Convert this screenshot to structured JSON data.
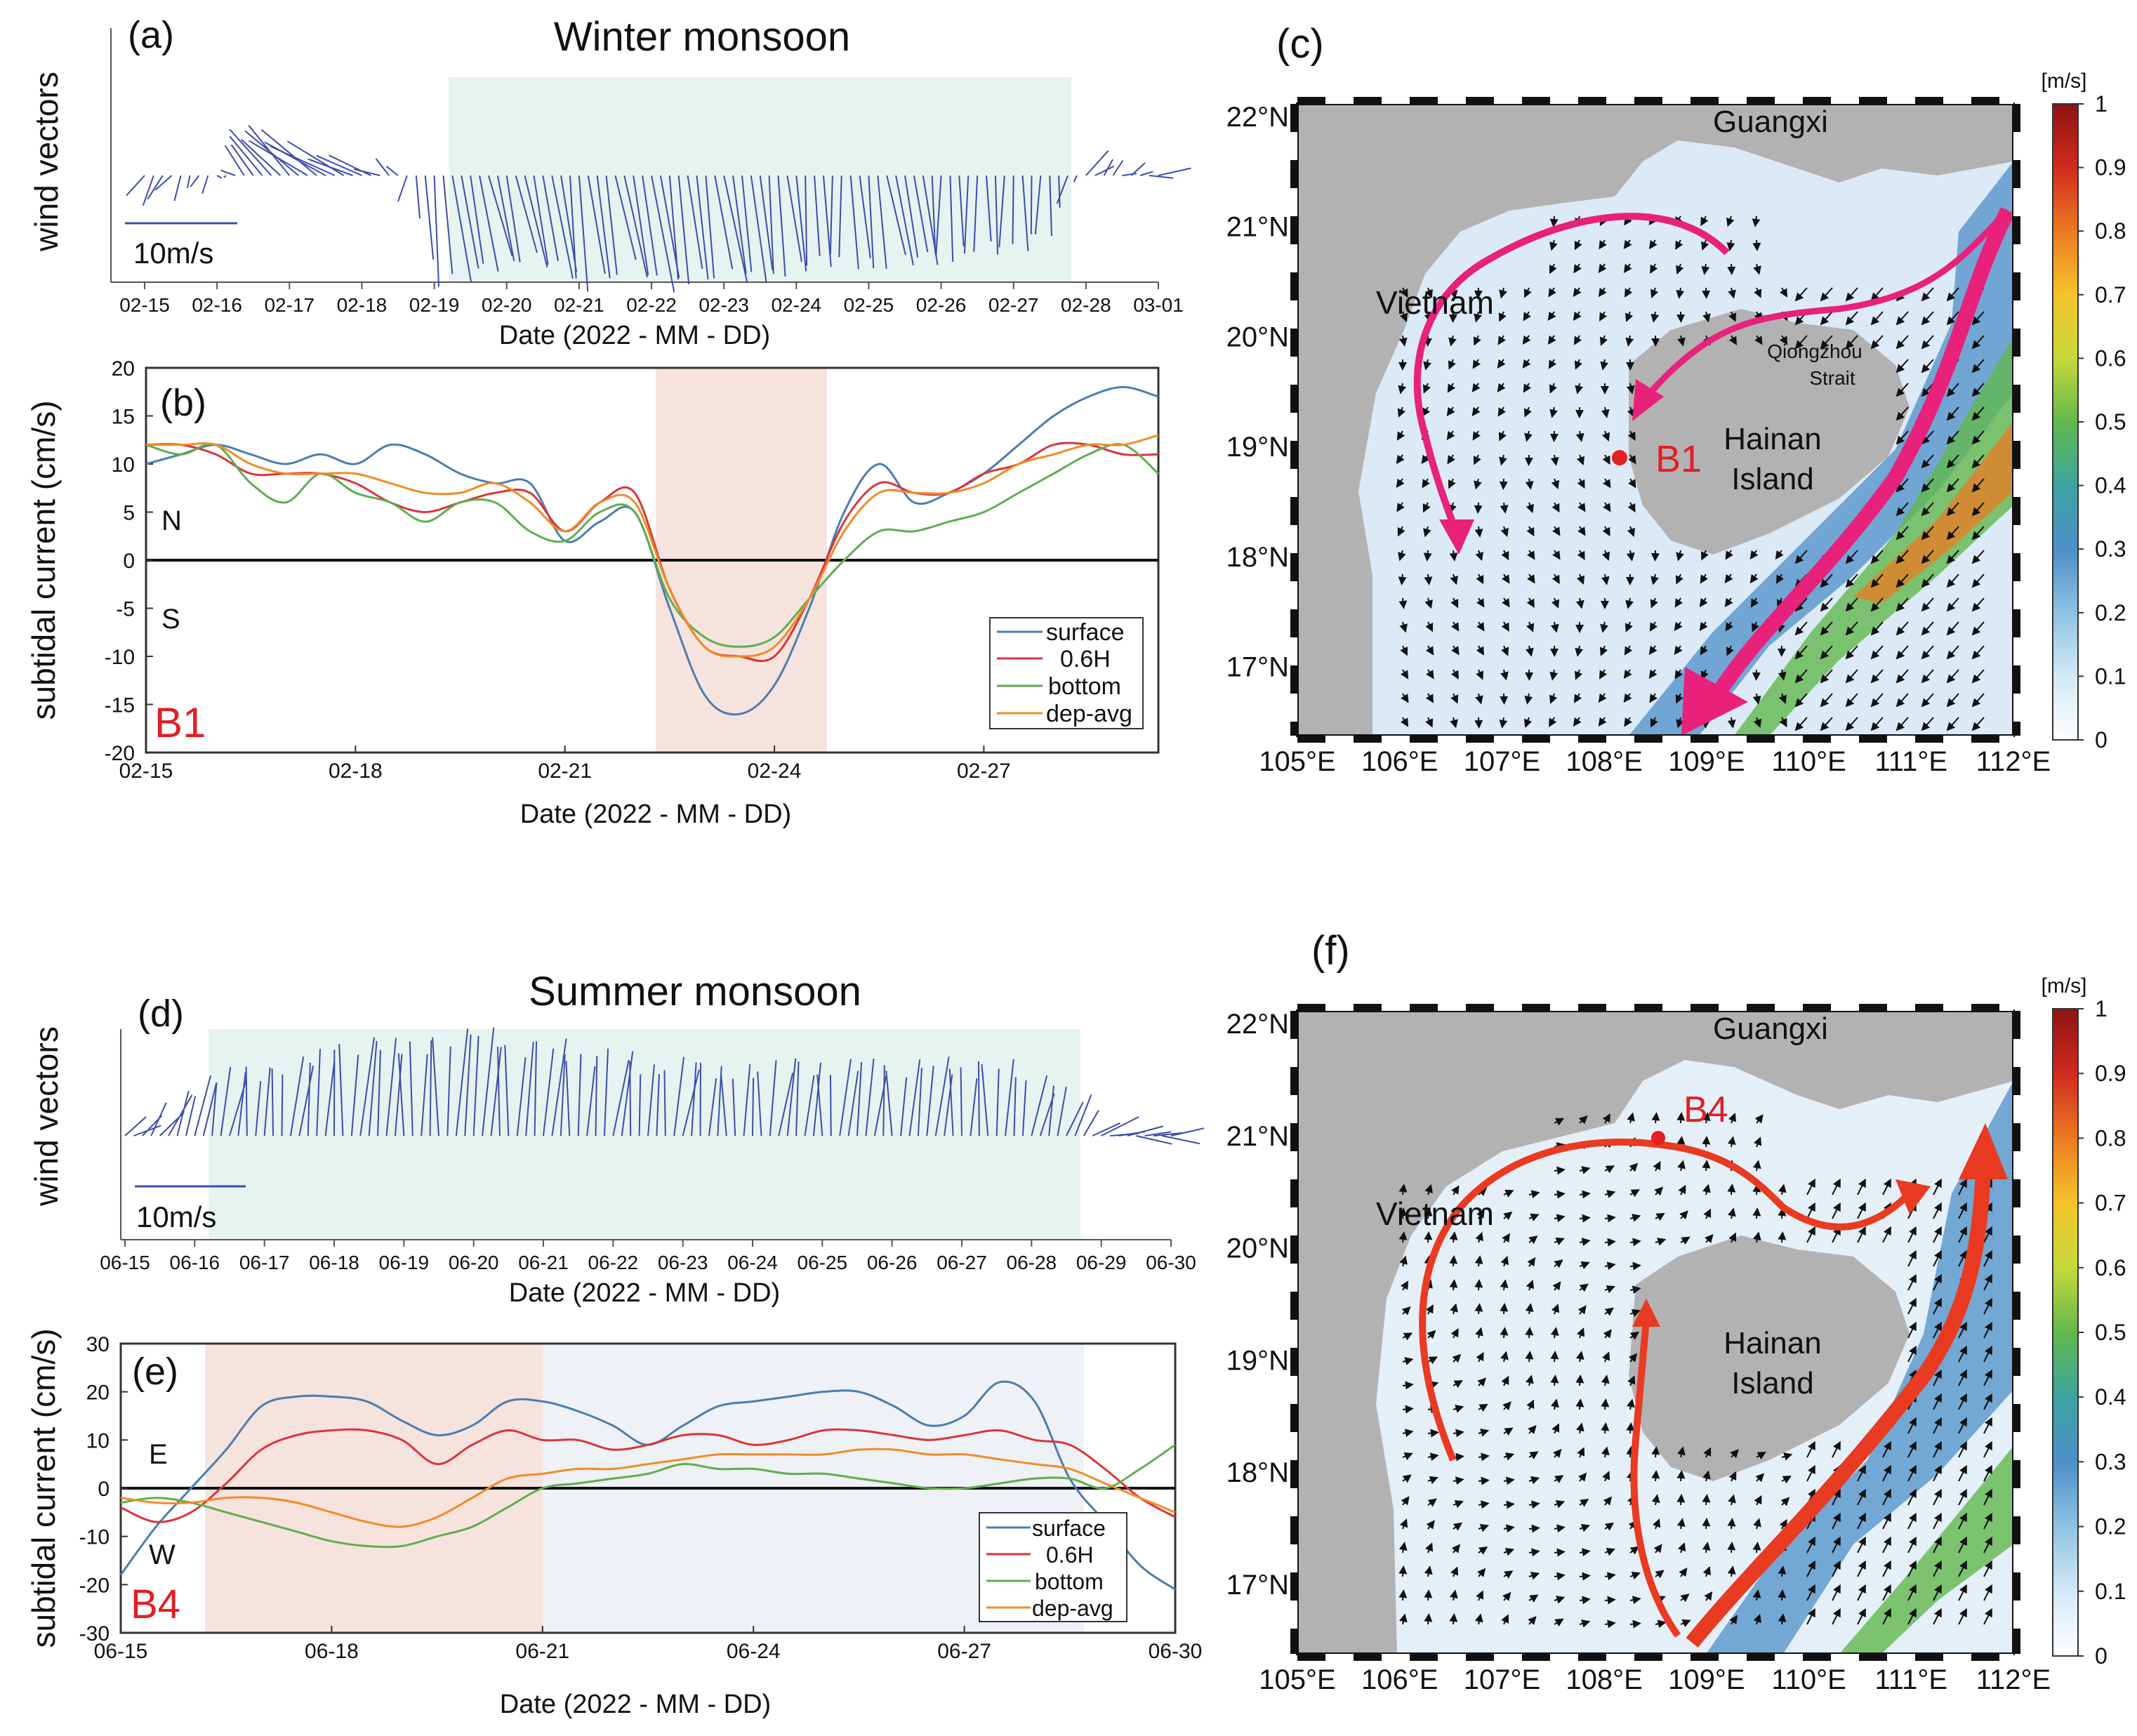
{
  "colors": {
    "wind": "#3b4ea8",
    "wind_shade": "#e7f3f1",
    "current_shade_south": "#f6e3de",
    "current_shade_north": "#eef1f5",
    "surface": "#4a7db0",
    "h06": "#d9353c",
    "bottom": "#5fae4f",
    "depavg": "#f08c28",
    "land": "#b2b2b2",
    "winter_arrow": "#e8217a",
    "summer_arrow": "#e93a22",
    "label_red": "#e31e24"
  },
  "panels": {
    "a": {
      "letter": "(a)",
      "title": "Winter monsoon",
      "ylabel": "wind vectors",
      "xlabel": "Date (2022 - MM - DD)",
      "scale_label": "10m/s",
      "ticks": [
        "02-15",
        "02-16",
        "02-17",
        "02-18",
        "02-19",
        "02-20",
        "02-21",
        "02-22",
        "02-23",
        "02-24",
        "02-25",
        "02-26",
        "02-27",
        "02-28",
        "03-01"
      ]
    },
    "b": {
      "letter": "(b)",
      "ylabel": "subtidal current (cm/s)",
      "xlabel": "Date (2022 - MM - DD)",
      "station": "B1",
      "pos_label": "N",
      "neg_label": "S",
      "yticks": [
        "20",
        "15",
        "10",
        "5",
        "0",
        "-5",
        "-10",
        "-15",
        "-20"
      ],
      "xticks": [
        "02-15",
        "02-18",
        "02-21",
        "02-24",
        "02-27"
      ],
      "legend": [
        "surface",
        "0.6H",
        "bottom",
        "dep-avg"
      ]
    },
    "c": {
      "letter": "(c)",
      "labels": {
        "guangxi": "Guangxi",
        "vietnam": "Vietnam",
        "strait": "Qiongzhou",
        "strait2": "Strait",
        "island": "Hainan",
        "island2": "Island",
        "station": "B1"
      },
      "lat_ticks": [
        "22°N",
        "21°N",
        "20°N",
        "19°N",
        "18°N",
        "17°N"
      ],
      "lon_ticks": [
        "105°E",
        "106°E",
        "107°E",
        "108°E",
        "109°E",
        "110°E",
        "111°E",
        "112°E"
      ],
      "cbar_unit": "[m/s]",
      "cbar_ticks": [
        "1",
        "0.9",
        "0.8",
        "0.7",
        "0.6",
        "0.5",
        "0.4",
        "0.3",
        "0.2",
        "0.1",
        "0"
      ]
    },
    "d": {
      "letter": "(d)",
      "title": "Summer monsoon",
      "ylabel": "wind vectors",
      "xlabel": "Date (2022 - MM - DD)",
      "scale_label": "10m/s",
      "ticks": [
        "06-15",
        "06-16",
        "06-17",
        "06-18",
        "06-19",
        "06-20",
        "06-21",
        "06-22",
        "06-23",
        "06-24",
        "06-25",
        "06-26",
        "06-27",
        "06-28",
        "06-29",
        "06-30"
      ]
    },
    "e": {
      "letter": "(e)",
      "ylabel": "subtidal current (cm/s)",
      "xlabel": "Date (2022 - MM - DD)",
      "station": "B4",
      "pos_label": "E",
      "neg_label": "W",
      "yticks": [
        "30",
        "20",
        "10",
        "0",
        "-10",
        "-20",
        "-30"
      ],
      "xticks": [
        "06-15",
        "06-18",
        "06-21",
        "06-24",
        "06-27",
        "06-30"
      ],
      "legend": [
        "surface",
        "0.6H",
        "bottom",
        "dep-avg"
      ]
    },
    "f": {
      "letter": "(f)",
      "labels": {
        "guangxi": "Guangxi",
        "vietnam": "Vietnam",
        "island": "Hainan",
        "island2": "Island",
        "station": "B4"
      },
      "lat_ticks": [
        "22°N",
        "21°N",
        "20°N",
        "19°N",
        "18°N",
        "17°N"
      ],
      "lon_ticks": [
        "105°E",
        "106°E",
        "107°E",
        "108°E",
        "109°E",
        "110°E",
        "111°E",
        "112°E"
      ],
      "cbar_unit": "[m/s]",
      "cbar_ticks": [
        "1",
        "0.9",
        "0.8",
        "0.7",
        "0.6",
        "0.5",
        "0.4",
        "0.3",
        "0.2",
        "0.1",
        "0"
      ]
    }
  },
  "chart_data": [
    {
      "panel": "a",
      "type": "line",
      "title": "Winter monsoon",
      "xlabel": "Date (2022 - MM - DD)",
      "ylabel": "wind vectors",
      "description_series": "wind stick vectors, 3-hourly",
      "x": [
        0,
        0.5,
        1,
        1.25,
        1.5,
        2,
        2.5,
        3,
        3.5,
        4,
        4.5,
        5,
        5.5,
        6,
        6.5,
        7,
        7.5,
        8,
        8.5,
        9,
        9.5,
        10,
        10.5,
        11,
        11.5,
        12,
        12.5,
        12.8,
        13,
        13.5,
        14
      ],
      "u": [
        -2,
        -1,
        0,
        -1,
        -3,
        -5,
        -7,
        -5,
        -1,
        1,
        2,
        2,
        2,
        1,
        2,
        2,
        1,
        2,
        1,
        1,
        0,
        1,
        2,
        0,
        0,
        0,
        0,
        -1,
        2,
        1,
        3
      ],
      "v": [
        -3,
        -2,
        -1,
        1,
        4,
        5,
        4,
        2,
        1,
        -12,
        -10,
        -9,
        -10,
        -12,
        -10,
        -12,
        -11,
        -11,
        -11,
        -10,
        -9,
        -10,
        -9,
        -9,
        -8,
        -8,
        -6,
        -2,
        2,
        1,
        0
      ],
      "shade_x": [
        4.2,
        12.8
      ]
    },
    {
      "panel": "b",
      "type": "line",
      "xlabel": "Date (2022 - MM - DD)",
      "ylabel": "subtidal current (cm/s)",
      "ylim": [
        -20,
        20
      ],
      "xlim": [
        0,
        14.5
      ],
      "xtick_days": [
        0,
        3,
        6,
        9,
        12
      ],
      "shade_x": [
        7.3,
        9.75
      ],
      "x": [
        0,
        0.5,
        1,
        1.5,
        2,
        2.5,
        3,
        3.5,
        4,
        4.5,
        5,
        5.5,
        6,
        6.5,
        7,
        7.5,
        8,
        8.5,
        9,
        9.5,
        10,
        10.5,
        11,
        11.5,
        12,
        12.5,
        13,
        13.5,
        14,
        14.5
      ],
      "series": [
        {
          "name": "surface",
          "values": [
            10,
            11,
            12,
            11,
            10,
            11,
            10,
            12,
            11,
            9,
            8,
            8,
            2,
            4,
            5,
            -5,
            -14,
            -16,
            -13,
            -5,
            5,
            10,
            6,
            7,
            9,
            12,
            15,
            17,
            18,
            17
          ]
        },
        {
          "name": "0.6H",
          "values": [
            12,
            12,
            11,
            9,
            9,
            9,
            8,
            6,
            5,
            6,
            7,
            7,
            3,
            6,
            7,
            -3,
            -9,
            -10,
            -10,
            -4,
            4,
            8,
            7,
            7,
            9,
            10,
            12,
            12,
            11,
            11
          ]
        },
        {
          "name": "bottom",
          "values": [
            12,
            11,
            12,
            8,
            6,
            9,
            7,
            6,
            4,
            6,
            6,
            3,
            2,
            5,
            5,
            -4,
            -8,
            -9,
            -8,
            -4,
            0,
            3,
            3,
            4,
            5,
            7,
            9,
            11,
            12,
            9
          ]
        },
        {
          "name": "dep-avg",
          "values": [
            12,
            12,
            12,
            10,
            9,
            9,
            9,
            8,
            7,
            7,
            8,
            6,
            3,
            6,
            6,
            -3,
            -9,
            -10,
            -9,
            -4,
            3,
            7,
            7,
            7,
            8,
            10,
            11,
            12,
            12,
            13
          ]
        }
      ]
    },
    {
      "panel": "d",
      "type": "line",
      "title": "Summer monsoon",
      "xlabel": "Date (2022 - MM - DD)",
      "ylabel": "wind vectors",
      "description_series": "wind stick vectors, 3-hourly",
      "x": [
        0,
        0.5,
        1,
        1.5,
        2,
        2.5,
        3,
        3.5,
        4,
        4.5,
        5,
        5.5,
        6,
        6.5,
        7,
        7.5,
        8,
        8.5,
        9,
        9.5,
        10,
        10.5,
        11,
        11.5,
        12,
        12.5,
        13,
        13.5,
        14,
        14.5,
        15
      ],
      "u": [
        2,
        2,
        1,
        1,
        0,
        1,
        0,
        1,
        0,
        0,
        1,
        0,
        1,
        0,
        1,
        0,
        1,
        0,
        0,
        1,
        0,
        1,
        0,
        1,
        0,
        0,
        1,
        1,
        3,
        3,
        3
      ],
      "v": [
        1,
        3,
        5,
        6,
        6,
        7,
        8,
        9,
        8,
        9,
        10,
        8,
        9,
        7,
        8,
        6,
        7,
        6,
        6,
        7,
        6,
        7,
        6,
        7,
        6,
        7,
        5,
        4,
        1,
        0,
        0
      ],
      "shade_x": [
        1.2,
        13.7
      ]
    },
    {
      "panel": "e",
      "type": "line",
      "xlabel": "Date (2022 - MM - DD)",
      "ylabel": "subtidal current (cm/s)",
      "ylim": [
        -30,
        30
      ],
      "xlim": [
        0,
        15
      ],
      "xtick_days": [
        0,
        3,
        6,
        9,
        12,
        15
      ],
      "shade_south": [
        1.2,
        6
      ],
      "shade_north": [
        6,
        13.7
      ],
      "x": [
        0,
        0.5,
        1,
        1.5,
        2,
        2.5,
        3,
        3.5,
        4,
        4.5,
        5,
        5.5,
        6,
        6.5,
        7,
        7.5,
        8,
        8.5,
        9,
        9.5,
        10,
        10.5,
        11,
        11.5,
        12,
        12.5,
        13,
        13.5,
        14,
        14.5,
        15
      ],
      "series": [
        {
          "name": "surface",
          "values": [
            -18,
            -8,
            0,
            8,
            17,
            19,
            19,
            18,
            14,
            11,
            13,
            18,
            18,
            16,
            13,
            9,
            13,
            17,
            18,
            19,
            20,
            20,
            17,
            13,
            15,
            22,
            18,
            2,
            -7,
            -16,
            -21
          ]
        },
        {
          "name": "0.6H",
          "values": [
            -4,
            -7,
            -5,
            1,
            8,
            11,
            12,
            12,
            10,
            5,
            9,
            12,
            10,
            10,
            8,
            9,
            11,
            11,
            9,
            10,
            12,
            12,
            11,
            10,
            11,
            12,
            10,
            9,
            4,
            -2,
            -6
          ]
        },
        {
          "name": "bottom",
          "values": [
            -3,
            -2,
            -3,
            -5,
            -7,
            -9,
            -11,
            -12,
            -12,
            -10,
            -8,
            -4,
            0,
            1,
            2,
            3,
            5,
            4,
            4,
            3,
            3,
            2,
            1,
            0,
            0,
            1,
            2,
            2,
            0,
            4,
            9
          ]
        },
        {
          "name": "dep-avg",
          "values": [
            -2,
            -3,
            -3,
            -2,
            -2,
            -3,
            -5,
            -7,
            -8,
            -6,
            -2,
            2,
            3,
            4,
            4,
            5,
            6,
            7,
            7,
            7,
            7,
            8,
            8,
            7,
            7,
            6,
            5,
            4,
            1,
            -2,
            -5
          ]
        }
      ]
    }
  ]
}
